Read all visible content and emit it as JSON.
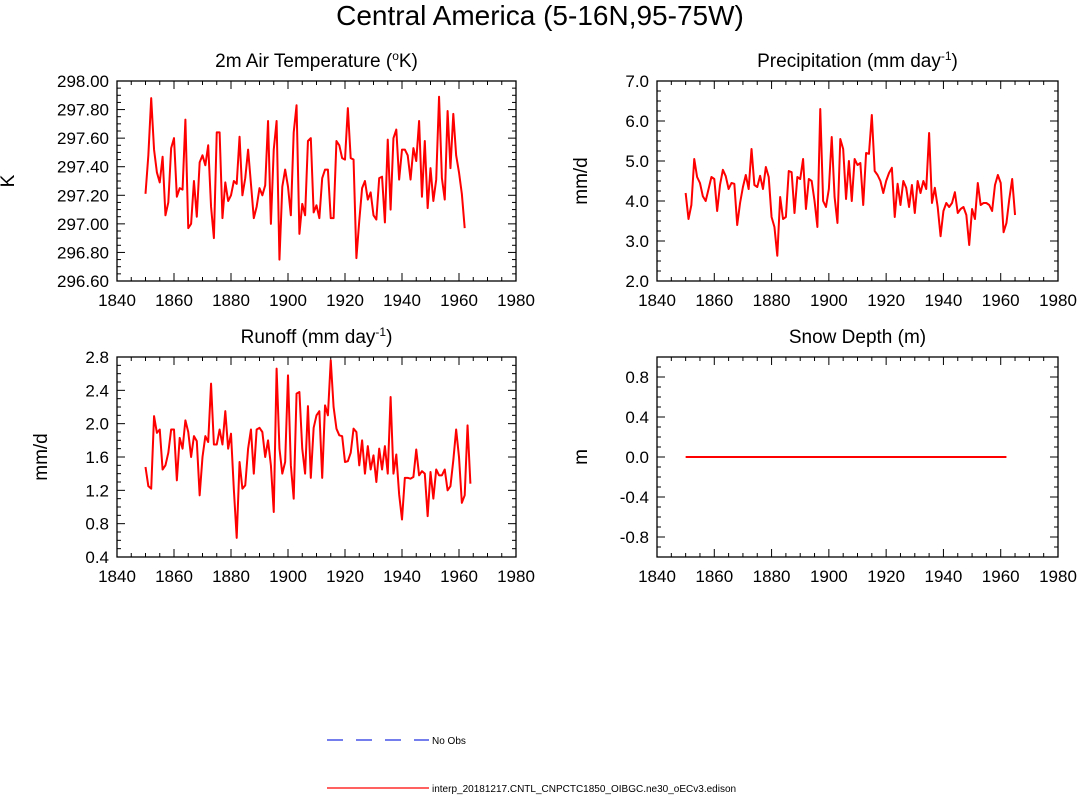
{
  "figure": {
    "title": "Central America (5-16N,95-75W)"
  },
  "legend": {
    "entries": [
      {
        "label": "No Obs",
        "color": "#2030e0",
        "dash": "dashed"
      },
      {
        "label": "interp_20181217.CNTL_CNPCTC1850_OIBGC.ne30_oECv3.edison",
        "color": "#ff0000",
        "dash": "solid"
      }
    ]
  },
  "chart_data": [
    {
      "id": "temp",
      "type": "line",
      "title": "2m Air Temperature (",
      "title_sup": "o",
      "title_after": "K)",
      "ylabel": "K",
      "xlabel": "",
      "xlim": [
        1840,
        1980
      ],
      "ylim": [
        296.6,
        298.0
      ],
      "xticks": [
        1840,
        1860,
        1880,
        1900,
        1920,
        1940,
        1960,
        1980
      ],
      "yticks": [
        296.6,
        296.8,
        297.0,
        297.2,
        297.4,
        297.6,
        297.8,
        298.0
      ],
      "ytick_labels": [
        "296.60",
        "296.80",
        "297.00",
        "297.20",
        "297.40",
        "297.60",
        "297.80",
        "298.00"
      ],
      "series": [
        {
          "name": "interp_20181217.CNTL_CNPCTC1850_OIBGC.ne30_oECv3.edison",
          "color": "#ff0000",
          "x_start": 1850,
          "values": [
            297.21,
            297.48,
            297.88,
            297.52,
            297.36,
            297.29,
            297.47,
            297.06,
            297.15,
            297.53,
            297.6,
            297.19,
            297.25,
            297.24,
            297.73,
            296.97,
            297.0,
            297.3,
            297.05,
            297.43,
            297.48,
            297.41,
            297.55,
            297.12,
            296.9,
            297.64,
            297.64,
            297.04,
            297.29,
            297.16,
            297.2,
            297.3,
            297.28,
            297.61,
            297.2,
            297.32,
            297.52,
            297.28,
            297.04,
            297.12,
            297.25,
            297.2,
            297.27,
            297.72,
            297.0,
            297.52,
            297.72,
            296.75,
            297.26,
            297.38,
            297.26,
            297.06,
            297.64,
            297.83,
            296.93,
            297.14,
            297.06,
            297.58,
            297.6,
            297.08,
            297.13,
            297.04,
            297.32,
            297.38,
            297.38,
            297.04,
            297.04,
            297.58,
            297.55,
            297.46,
            297.45,
            297.81,
            297.46,
            297.45,
            296.76,
            297.02,
            297.25,
            297.3,
            297.17,
            297.22,
            297.06,
            297.03,
            297.32,
            297.33,
            297.01,
            297.59,
            297.1,
            297.6,
            297.66,
            297.31,
            297.52,
            297.52,
            297.48,
            297.31,
            297.53,
            297.44,
            297.72,
            297.19,
            297.58,
            297.11,
            297.39,
            297.16,
            297.31,
            297.89,
            297.32,
            297.17,
            297.79,
            297.39,
            297.77,
            297.48,
            297.36,
            297.21,
            296.97
          ]
        }
      ]
    },
    {
      "id": "precip",
      "type": "line",
      "title": "Precipitation (mm day",
      "title_sup": "-1",
      "title_after": ")",
      "ylabel": "mm/d",
      "xlabel": "",
      "xlim": [
        1840,
        1980
      ],
      "ylim": [
        2.0,
        7.0
      ],
      "xticks": [
        1840,
        1860,
        1880,
        1900,
        1920,
        1940,
        1960,
        1980
      ],
      "yticks": [
        2.0,
        3.0,
        4.0,
        5.0,
        6.0,
        7.0
      ],
      "ytick_labels": [
        "2.0",
        "3.0",
        "4.0",
        "5.0",
        "6.0",
        "7.0"
      ],
      "series": [
        {
          "name": "interp_20181217.CNTL_CNPCTC1850_OIBGC.ne30_oECv3.edison",
          "color": "#ff0000",
          "x_start": 1850,
          "values": [
            4.2,
            3.55,
            3.9,
            5.05,
            4.6,
            4.45,
            4.12,
            4.0,
            4.3,
            4.6,
            4.55,
            3.75,
            4.4,
            4.78,
            4.62,
            4.3,
            4.45,
            4.43,
            3.4,
            3.95,
            4.35,
            4.65,
            4.3,
            5.3,
            4.4,
            4.35,
            4.63,
            4.3,
            4.85,
            4.6,
            3.6,
            3.35,
            2.63,
            4.1,
            3.55,
            3.6,
            4.75,
            4.72,
            3.7,
            4.6,
            4.55,
            5.05,
            3.8,
            4.55,
            4.5,
            4.0,
            3.35,
            6.3,
            4.0,
            3.85,
            4.3,
            5.6,
            4.1,
            3.45,
            5.55,
            5.3,
            4.05,
            5.0,
            4.0,
            5.05,
            4.9,
            4.95,
            3.9,
            5.2,
            5.18,
            6.15,
            4.75,
            4.65,
            4.5,
            4.2,
            4.5,
            4.7,
            4.83,
            3.6,
            4.43,
            3.9,
            4.5,
            4.33,
            3.85,
            4.4,
            3.7,
            4.5,
            4.2,
            4.5,
            4.3,
            5.7,
            3.95,
            4.33,
            3.85,
            3.12,
            3.75,
            3.95,
            3.85,
            3.95,
            4.22,
            3.7,
            3.8,
            3.85,
            3.65,
            2.9,
            3.8,
            3.55,
            4.45,
            3.9,
            3.95,
            3.95,
            3.9,
            3.75,
            4.4,
            4.65,
            4.45,
            3.22,
            3.45,
            4.05,
            4.55,
            3.65
          ]
        }
      ]
    },
    {
      "id": "runoff",
      "type": "line",
      "title": "Runoff (mm day",
      "title_sup": "-1",
      "title_after": ")",
      "ylabel": "mm/d",
      "xlabel": "",
      "xlim": [
        1840,
        1980
      ],
      "ylim": [
        0.4,
        2.8
      ],
      "xticks": [
        1840,
        1860,
        1880,
        1900,
        1920,
        1940,
        1960,
        1980
      ],
      "yticks": [
        0.4,
        0.8,
        1.2,
        1.6,
        2.0,
        2.4,
        2.8
      ],
      "ytick_labels": [
        "0.4",
        "0.8",
        "1.2",
        "1.6",
        "2.0",
        "2.4",
        "2.8"
      ],
      "series": [
        {
          "name": "interp_20181217.CNTL_CNPCTC1850_OIBGC.ne30_oECv3.edison",
          "color": "#ff0000",
          "x_start": 1850,
          "values": [
            1.48,
            1.25,
            1.22,
            2.09,
            1.89,
            1.93,
            1.45,
            1.5,
            1.65,
            1.93,
            1.93,
            1.32,
            1.83,
            1.7,
            2.04,
            1.9,
            1.6,
            1.85,
            1.79,
            1.14,
            1.6,
            1.85,
            1.78,
            2.48,
            1.75,
            1.75,
            1.93,
            1.75,
            2.15,
            1.7,
            1.88,
            1.21,
            0.63,
            1.54,
            1.22,
            1.26,
            1.7,
            1.93,
            1.4,
            1.93,
            1.95,
            1.9,
            1.6,
            1.8,
            1.5,
            0.94,
            2.66,
            1.7,
            1.4,
            1.54,
            2.58,
            1.5,
            1.1,
            2.36,
            2.38,
            1.7,
            1.4,
            2.21,
            1.35,
            1.95,
            2.1,
            2.15,
            1.35,
            2.22,
            2.1,
            2.76,
            2.2,
            1.94,
            1.86,
            1.85,
            1.54,
            1.55,
            1.65,
            1.94,
            1.9,
            1.5,
            1.8,
            1.4,
            1.73,
            1.45,
            1.62,
            1.3,
            1.7,
            1.45,
            1.73,
            1.4,
            2.32,
            1.4,
            1.63,
            1.15,
            0.85,
            1.35,
            1.35,
            1.34,
            1.36,
            1.69,
            1.38,
            1.43,
            1.4,
            0.89,
            1.42,
            1.1,
            1.45,
            1.38,
            1.38,
            1.45,
            1.2,
            1.25,
            1.56,
            1.93,
            1.6,
            1.05,
            1.14,
            1.98,
            1.28
          ]
        }
      ]
    },
    {
      "id": "snow",
      "type": "line",
      "title": "Snow Depth (m)",
      "title_sup": "",
      "title_after": "",
      "ylabel": "m",
      "xlabel": "",
      "xlim": [
        1840,
        1980
      ],
      "ylim": [
        -1.0,
        1.0
      ],
      "xticks": [
        1840,
        1860,
        1880,
        1900,
        1920,
        1940,
        1960,
        1980
      ],
      "yticks": [
        -0.8,
        -0.4,
        0.0,
        0.4,
        0.8
      ],
      "ytick_labels": [
        "-0.8",
        "-0.4",
        "0.0",
        "0.4",
        "0.8"
      ],
      "series": [
        {
          "name": "interp_20181217.CNTL_CNPCTC1850_OIBGC.ne30_oECv3.edison",
          "color": "#ff0000",
          "x_start": 1850,
          "x_end": 1962,
          "constant": 0.0
        }
      ]
    }
  ]
}
